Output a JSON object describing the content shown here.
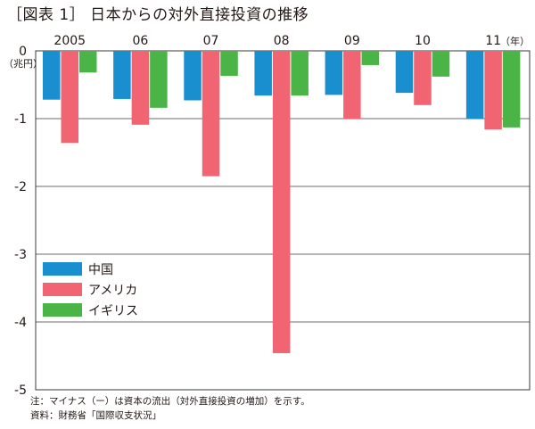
{
  "chart_data": {
    "type": "bar",
    "title": "［図表 1］ 日本からの対外直接投資の推移",
    "categories": [
      "2005",
      "06",
      "07",
      "08",
      "09",
      "10",
      "11"
    ],
    "x_unit": "（年）",
    "y_unit": "（兆円）",
    "yticks": [
      "0",
      "-1",
      "-2",
      "-3",
      "-4",
      "-5"
    ],
    "ylim": [
      -5,
      0
    ],
    "grid": true,
    "legend_position": "middle-left",
    "series": [
      {
        "name": "中国",
        "color": "#1a8fd0",
        "values": [
          -0.72,
          -0.71,
          -0.73,
          -0.66,
          -0.65,
          -0.62,
          -1.0
        ]
      },
      {
        "name": "アメリカ",
        "color": "#f06571",
        "values": [
          -1.36,
          -1.09,
          -1.85,
          -4.46,
          -1.0,
          -0.8,
          -1.16
        ]
      },
      {
        "name": "イギリス",
        "color": "#4ab447",
        "values": [
          -0.32,
          -0.84,
          -0.37,
          -0.66,
          -0.21,
          -0.38,
          -1.13
        ]
      }
    ]
  },
  "notes": {
    "note": "注：マイナス（ー）は資本の流出（対外直接投資の増加）を示す。",
    "source": "資料：財務省「国際収支状況」"
  }
}
